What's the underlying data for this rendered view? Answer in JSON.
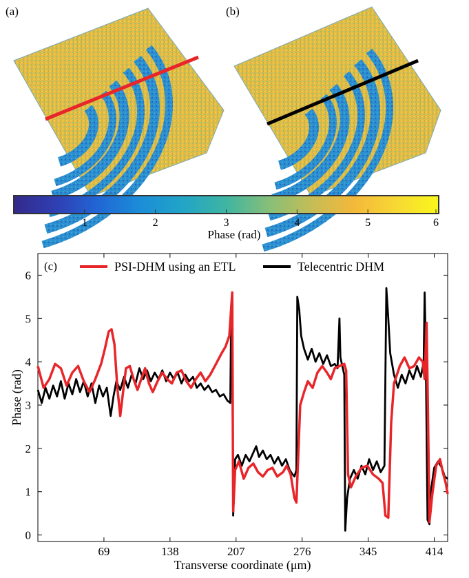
{
  "panels": {
    "a": "(a)",
    "b": "(b)",
    "c": "(c)"
  },
  "colors": {
    "psi": "#e8262a",
    "telecentric": "#000000",
    "scan_a": "#e8262a",
    "scan_b": "#000000",
    "colormap": [
      "#332a8a",
      "#2f3fb3",
      "#2167d6",
      "#1b8ed7",
      "#22a5c6",
      "#3fb5a2",
      "#86bf78",
      "#c4bd57",
      "#f4b83a",
      "#f7d834",
      "#f9f71b"
    ]
  },
  "colorbar": {
    "ticks": [
      1,
      2,
      3,
      4,
      5,
      6
    ],
    "label": "Phase (rad)",
    "range": [
      0,
      6
    ]
  },
  "chart_data": {
    "type": "line",
    "xlabel": "Transverse coordinate (μm)",
    "ylabel": "Phase (rad)",
    "xticks": [
      69,
      138,
      207,
      276,
      345,
      414
    ],
    "yticks": [
      0,
      1,
      2,
      3,
      4,
      5,
      6
    ],
    "xlim": [
      0,
      428
    ],
    "ylim": [
      -0.15,
      6.5
    ],
    "legend_position": "top",
    "series": [
      {
        "name": "PSI-DHM using an ETL",
        "color": "#e8262a",
        "points": [
          [
            0,
            3.9
          ],
          [
            6,
            3.4
          ],
          [
            12,
            3.6
          ],
          [
            18,
            3.95
          ],
          [
            24,
            3.85
          ],
          [
            30,
            3.45
          ],
          [
            36,
            3.75
          ],
          [
            42,
            3.9
          ],
          [
            48,
            3.55
          ],
          [
            54,
            3.3
          ],
          [
            60,
            3.6
          ],
          [
            66,
            3.95
          ],
          [
            70,
            4.3
          ],
          [
            74,
            4.7
          ],
          [
            77,
            4.75
          ],
          [
            80,
            4.4
          ],
          [
            83,
            3.4
          ],
          [
            86,
            2.75
          ],
          [
            89,
            3.3
          ],
          [
            92,
            3.85
          ],
          [
            96,
            3.9
          ],
          [
            100,
            3.6
          ],
          [
            104,
            3.35
          ],
          [
            108,
            3.6
          ],
          [
            112,
            3.85
          ],
          [
            116,
            3.5
          ],
          [
            120,
            3.3
          ],
          [
            125,
            3.55
          ],
          [
            130,
            3.75
          ],
          [
            135,
            3.6
          ],
          [
            140,
            3.5
          ],
          [
            145,
            3.75
          ],
          [
            150,
            3.8
          ],
          [
            155,
            3.55
          ],
          [
            160,
            3.4
          ],
          [
            165,
            3.6
          ],
          [
            170,
            3.75
          ],
          [
            175,
            3.55
          ],
          [
            180,
            3.7
          ],
          [
            186,
            3.95
          ],
          [
            192,
            4.2
          ],
          [
            196,
            4.35
          ],
          [
            200,
            4.6
          ],
          [
            203,
            5.6
          ],
          [
            204,
            0.55
          ],
          [
            206,
            1.5
          ],
          [
            210,
            1.7
          ],
          [
            215,
            1.3
          ],
          [
            220,
            1.55
          ],
          [
            225,
            1.65
          ],
          [
            230,
            1.45
          ],
          [
            235,
            1.35
          ],
          [
            240,
            1.5
          ],
          [
            245,
            1.55
          ],
          [
            250,
            1.35
          ],
          [
            256,
            1.45
          ],
          [
            260,
            1.6
          ],
          [
            264,
            1.4
          ],
          [
            268,
            0.85
          ],
          [
            270,
            0.75
          ],
          [
            274,
            3.0
          ],
          [
            278,
            3.3
          ],
          [
            282,
            3.55
          ],
          [
            287,
            3.4
          ],
          [
            292,
            3.75
          ],
          [
            297,
            3.9
          ],
          [
            302,
            3.75
          ],
          [
            306,
            3.6
          ],
          [
            310,
            3.85
          ],
          [
            315,
            3.9
          ],
          [
            320,
            3.95
          ],
          [
            322,
            3.8
          ],
          [
            324,
            1.4
          ],
          [
            327,
            1.1
          ],
          [
            332,
            1.35
          ],
          [
            338,
            1.55
          ],
          [
            344,
            1.6
          ],
          [
            350,
            1.4
          ],
          [
            356,
            1.3
          ],
          [
            360,
            1.2
          ],
          [
            363,
            0.45
          ],
          [
            366,
            0.4
          ],
          [
            369,
            2.6
          ],
          [
            372,
            3.5
          ],
          [
            378,
            3.9
          ],
          [
            383,
            4.1
          ],
          [
            388,
            3.85
          ],
          [
            393,
            3.9
          ],
          [
            398,
            4.1
          ],
          [
            402,
            4.0
          ],
          [
            404,
            3.6
          ],
          [
            406,
            4.9
          ],
          [
            407,
            3.5
          ],
          [
            409,
            0.3
          ],
          [
            412,
            0.95
          ],
          [
            416,
            1.6
          ],
          [
            420,
            1.75
          ],
          [
            423,
            1.45
          ],
          [
            426,
            1.2
          ],
          [
            428,
            0.95
          ]
        ]
      },
      {
        "name": "Telecentric DHM",
        "color": "#000000",
        "points": [
          [
            0,
            3.35
          ],
          [
            4,
            3.05
          ],
          [
            8,
            3.4
          ],
          [
            12,
            3.15
          ],
          [
            16,
            3.45
          ],
          [
            20,
            3.2
          ],
          [
            24,
            3.55
          ],
          [
            28,
            3.15
          ],
          [
            32,
            3.5
          ],
          [
            36,
            3.25
          ],
          [
            40,
            3.6
          ],
          [
            44,
            3.3
          ],
          [
            48,
            3.55
          ],
          [
            52,
            3.2
          ],
          [
            56,
            3.5
          ],
          [
            60,
            3.05
          ],
          [
            64,
            3.45
          ],
          [
            68,
            3.2
          ],
          [
            72,
            3.4
          ],
          [
            76,
            2.75
          ],
          [
            79,
            3.2
          ],
          [
            82,
            3.55
          ],
          [
            86,
            3.35
          ],
          [
            90,
            3.65
          ],
          [
            94,
            3.4
          ],
          [
            98,
            3.7
          ],
          [
            102,
            3.5
          ],
          [
            106,
            3.85
          ],
          [
            110,
            3.6
          ],
          [
            114,
            3.8
          ],
          [
            118,
            3.55
          ],
          [
            122,
            3.75
          ],
          [
            126,
            3.6
          ],
          [
            130,
            3.8
          ],
          [
            134,
            3.55
          ],
          [
            138,
            3.75
          ],
          [
            142,
            3.6
          ],
          [
            146,
            3.75
          ],
          [
            150,
            3.5
          ],
          [
            154,
            3.7
          ],
          [
            158,
            3.55
          ],
          [
            162,
            3.65
          ],
          [
            166,
            3.4
          ],
          [
            170,
            3.5
          ],
          [
            174,
            3.35
          ],
          [
            178,
            3.45
          ],
          [
            182,
            3.3
          ],
          [
            186,
            3.35
          ],
          [
            190,
            3.2
          ],
          [
            194,
            3.25
          ],
          [
            198,
            3.1
          ],
          [
            201,
            3.05
          ],
          [
            202,
            5.3
          ],
          [
            203,
            4.8
          ],
          [
            204,
            0.45
          ],
          [
            206,
            1.75
          ],
          [
            209,
            1.85
          ],
          [
            213,
            1.6
          ],
          [
            217,
            1.85
          ],
          [
            221,
            1.7
          ],
          [
            225,
            1.9
          ],
          [
            228,
            2.05
          ],
          [
            231,
            1.8
          ],
          [
            235,
            1.95
          ],
          [
            239,
            1.75
          ],
          [
            243,
            1.85
          ],
          [
            247,
            1.65
          ],
          [
            251,
            1.8
          ],
          [
            255,
            1.6
          ],
          [
            259,
            1.75
          ],
          [
            263,
            1.5
          ],
          [
            266,
            1.4
          ],
          [
            268,
            1.35
          ],
          [
            270,
            1.5
          ],
          [
            271,
            5.5
          ],
          [
            273,
            5.2
          ],
          [
            275,
            4.6
          ],
          [
            278,
            4.3
          ],
          [
            282,
            4.05
          ],
          [
            286,
            4.3
          ],
          [
            290,
            4.0
          ],
          [
            294,
            4.2
          ],
          [
            298,
            3.95
          ],
          [
            302,
            4.15
          ],
          [
            306,
            3.9
          ],
          [
            310,
            3.95
          ],
          [
            313,
            3.85
          ],
          [
            315,
            5.0
          ],
          [
            316,
            4.1
          ],
          [
            318,
            3.9
          ],
          [
            320,
            3.7
          ],
          [
            321,
            0.1
          ],
          [
            323,
            0.85
          ],
          [
            326,
            1.3
          ],
          [
            330,
            1.5
          ],
          [
            334,
            1.3
          ],
          [
            338,
            1.6
          ],
          [
            342,
            1.4
          ],
          [
            346,
            1.75
          ],
          [
            350,
            1.5
          ],
          [
            354,
            1.7
          ],
          [
            358,
            1.45
          ],
          [
            362,
            1.6
          ],
          [
            364,
            5.7
          ],
          [
            366,
            5.0
          ],
          [
            368,
            4.2
          ],
          [
            372,
            3.7
          ],
          [
            376,
            3.4
          ],
          [
            380,
            3.7
          ],
          [
            384,
            3.5
          ],
          [
            388,
            3.8
          ],
          [
            392,
            3.6
          ],
          [
            396,
            3.9
          ],
          [
            400,
            3.65
          ],
          [
            403,
            4.0
          ],
          [
            404,
            5.6
          ],
          [
            405,
            4.5
          ],
          [
            407,
            0.35
          ],
          [
            409,
            0.25
          ],
          [
            411,
            1.1
          ],
          [
            414,
            1.55
          ],
          [
            418,
            1.7
          ],
          [
            422,
            1.55
          ],
          [
            425,
            1.35
          ],
          [
            428,
            1.3
          ]
        ]
      }
    ]
  }
}
